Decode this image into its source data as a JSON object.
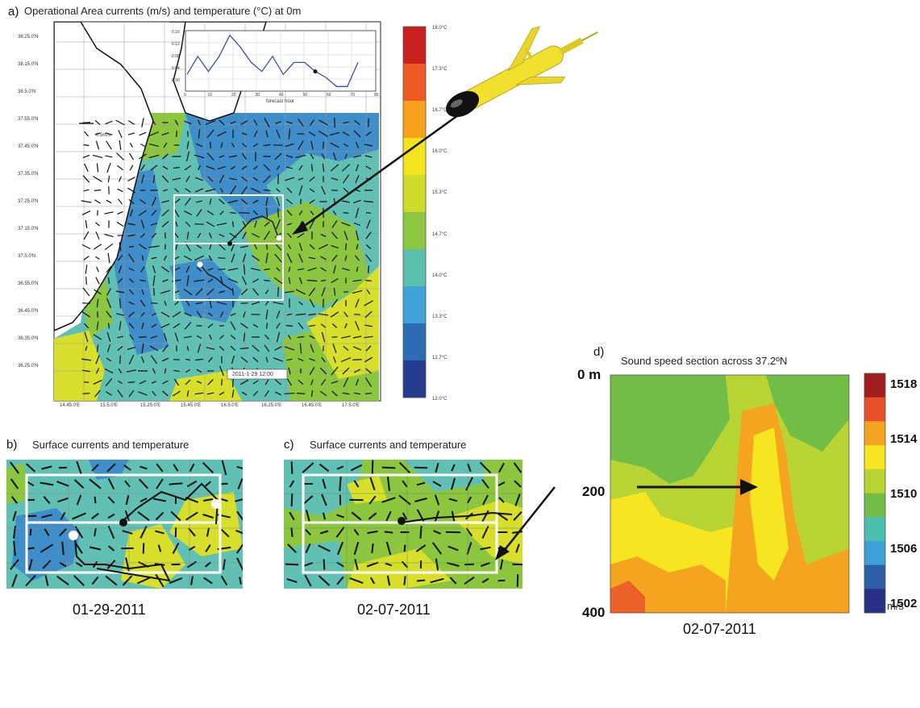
{
  "panel_a": {
    "letter": "a)",
    "title": "Operational Area currents (m/s) and temperature (°C) at 0m",
    "lat_labels": [
      "38.25.0'N",
      "38.15.0'N",
      "38.5.0'N",
      "37.55.0'N",
      "37.45.0'N",
      "37.35.0'N",
      "37.25.0'N",
      "37.15.0'N",
      "37.5.0'N",
      "36.55.0'N",
      "36.45.0'N",
      "36.35.0'N",
      "36.25.0'N"
    ],
    "lon_labels": [
      "14.45.0'E",
      "15.5.0'E",
      "15.25.0'E",
      "15.45.0'E",
      "16.5.0'E",
      "16.25.0'E",
      "16.45.0'E",
      "17.5.0'E"
    ],
    "scale_label": "0.5m/s",
    "timestamp": "2011-1-29 12:00",
    "inset": {
      "y_ticks": [
        "0.16",
        "0.12",
        "0.08",
        "0.04",
        "0.00"
      ],
      "x_ticks": [
        "0",
        "10",
        "20",
        "30",
        "40",
        "50",
        "60",
        "70",
        "80"
      ],
      "xlabel": "forecast hour",
      "values": [
        0.03,
        0.09,
        0.04,
        0.09,
        0.16,
        0.12,
        0.07,
        0.04,
        0.09,
        0.03,
        0.07,
        0.07,
        0.04,
        0.02,
        -0.01,
        -0.01,
        0.07
      ]
    },
    "colorbar_labels": [
      "18.0°C",
      "17.3°C",
      "16.7°C",
      "16.0°C",
      "15.3°C",
      "14.7°C",
      "14.0°C",
      "13.3°C",
      "12.7°C",
      "12.0°C"
    ],
    "colorbar_colors": [
      "#c8201c",
      "#ed5a24",
      "#f6a21b",
      "#f4e41d",
      "#cfdb2a",
      "#8dc63f",
      "#5bbfae",
      "#3fa2d8",
      "#2d6bb3",
      "#253c8e"
    ]
  },
  "panel_b": {
    "letter": "b)",
    "title": "Surface currents and temperature",
    "date": "01-29-2011"
  },
  "panel_c": {
    "letter": "c)",
    "title": "Surface currents and temperature",
    "date": "02-07-2011"
  },
  "panel_d": {
    "letter": "d)",
    "title": "Sound speed section across 37.2ºN",
    "depth_labels": [
      "0 m",
      "200",
      "400"
    ],
    "colorbar_labels": [
      "1518",
      "1514",
      "1510",
      "1506",
      "1502"
    ],
    "unit": "m/s",
    "date": "02-07-2011",
    "colorbar_colors": [
      "#a21d1d",
      "#e8502a",
      "#f4a41f",
      "#f6e51f",
      "#b8d433",
      "#72bd45",
      "#4bbfad",
      "#3e9fd8",
      "#2c5ea8",
      "#272f87"
    ]
  },
  "colors": {
    "blue": "#3f8ec9",
    "cyan": "#5fc0b3",
    "green": "#8cc63f",
    "yellow": "#d7df2b",
    "orange": "#f6a21b",
    "glider_yellow": "#f2e02e"
  }
}
